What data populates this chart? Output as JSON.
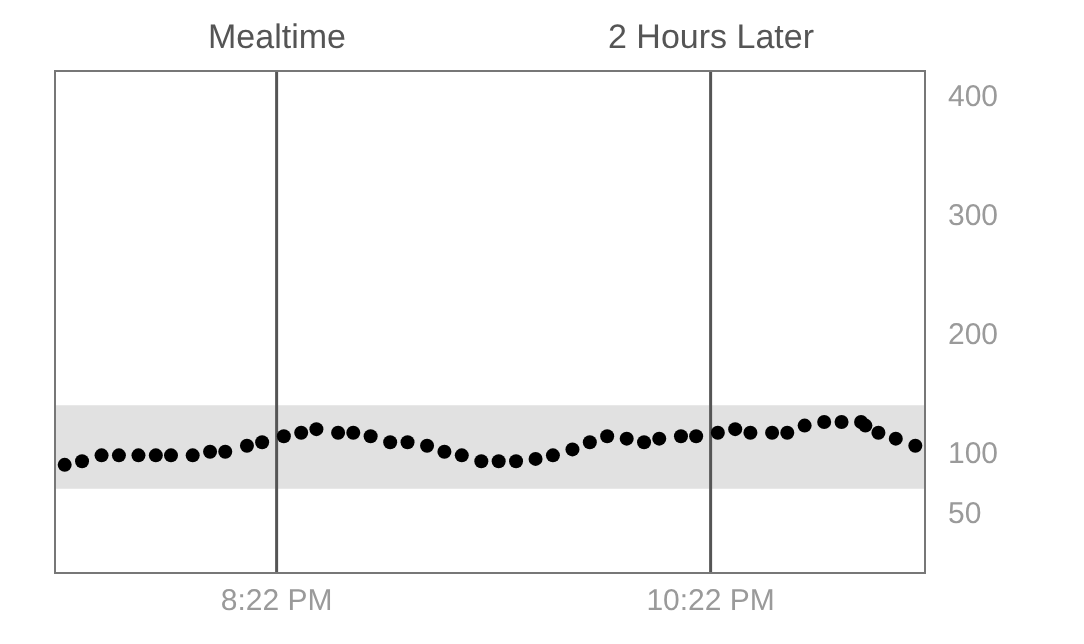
{
  "chart_data": {
    "type": "scatter",
    "x": [
      19.39,
      19.47,
      19.56,
      19.64,
      19.73,
      19.81,
      19.88,
      19.98,
      20.06,
      20.13,
      20.23,
      20.3,
      20.4,
      20.48,
      20.55,
      20.65,
      20.72,
      20.8,
      20.89,
      20.97,
      21.06,
      21.14,
      21.22,
      21.31,
      21.39,
      21.47,
      21.56,
      21.64,
      21.73,
      21.81,
      21.89,
      21.98,
      22.06,
      22.13,
      22.23,
      22.3,
      22.4,
      22.48,
      22.55,
      22.65,
      22.72,
      22.8,
      22.89,
      22.97,
      23.06,
      23.08,
      23.14,
      23.22,
      23.31
    ],
    "series": [
      {
        "color": "#000000",
        "values": [
          90,
          93,
          98,
          98,
          98,
          98,
          98,
          98,
          101,
          101,
          106,
          109,
          114,
          117,
          120,
          117,
          117,
          114,
          109,
          109,
          106,
          101,
          98,
          93,
          93,
          93,
          95,
          98,
          103,
          109,
          114,
          112,
          109,
          112,
          114,
          114,
          117,
          120,
          117,
          117,
          117,
          123,
          126,
          126,
          126,
          123,
          117,
          112,
          106
        ]
      }
    ],
    "marker": "circle",
    "xlim": [
      19.35,
      23.35
    ],
    "xticks": [
      {
        "value": 20.3667,
        "label": "8:22 PM"
      },
      {
        "value": 22.3667,
        "label": "10:22 PM"
      }
    ],
    "ylim": [
      0,
      420
    ],
    "yticks": [
      50,
      100,
      200,
      300,
      400
    ],
    "grid": false,
    "ref_lines": [
      {
        "axis": "x",
        "value": 20.3667,
        "label": "Mealtime",
        "color": "#555555"
      },
      {
        "axis": "x",
        "value": 22.3667,
        "label": "2 Hours Later",
        "color": "#555555"
      }
    ],
    "bands": [
      {
        "axis": "y",
        "from": 70,
        "to": 140,
        "color": "#e1e1e1"
      }
    ]
  }
}
